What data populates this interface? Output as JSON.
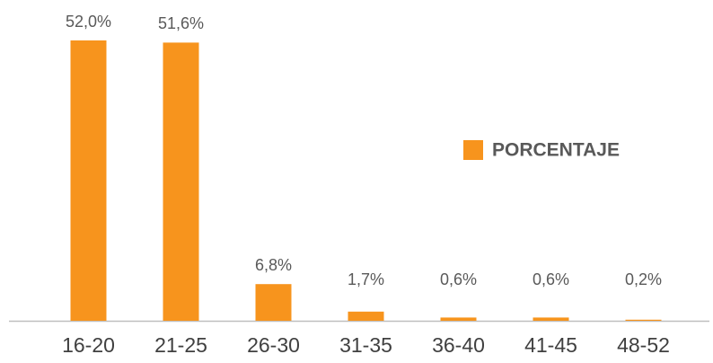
{
  "chart_data": {
    "type": "bar",
    "categories": [
      "16-20",
      "21-25",
      "26-30",
      "31-35",
      "36-40",
      "41-45",
      "48-52"
    ],
    "series": [
      {
        "name": "PORCENTAJE",
        "color": "#f7941d",
        "values": [
          52.0,
          51.6,
          6.8,
          1.7,
          0.6,
          0.6,
          0.2
        ],
        "value_labels": [
          "52,0%",
          "51,6%",
          "6,8%",
          "1,7%",
          "0,6%",
          "0,6%",
          "0,2%"
        ]
      }
    ],
    "ylim": [
      0,
      52
    ],
    "legend": "right"
  }
}
